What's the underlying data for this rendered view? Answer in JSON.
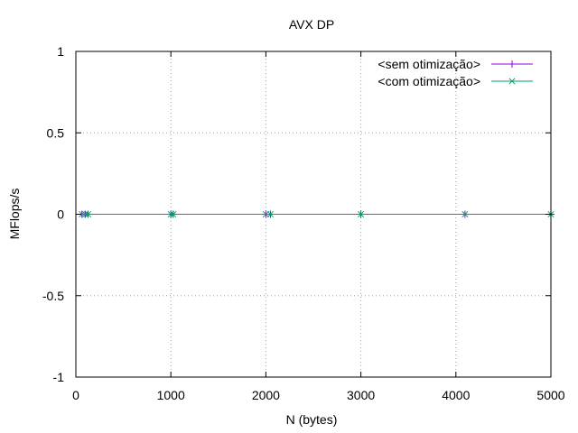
{
  "chart_data": {
    "type": "line",
    "title": "AVX DP",
    "xlabel": "N (bytes)",
    "ylabel": "MFlops/s",
    "xlim": [
      0,
      5000
    ],
    "ylim": [
      -1,
      1
    ],
    "xticks": [
      0,
      1000,
      2000,
      3000,
      4000,
      5000
    ],
    "xtick_labels": [
      "0",
      "1000",
      "2000",
      "3000",
      "4000",
      "5000"
    ],
    "yticks": [
      1,
      0.5,
      0,
      -0.5,
      -1
    ],
    "ytick_labels": [
      "1",
      "0.5",
      "0",
      "-0.5",
      "-1"
    ],
    "grid": true,
    "legend_position": "top-right",
    "series": [
      {
        "name": "<sem otimização>",
        "color": "#9400d3",
        "marker": "plus",
        "x": [
          64,
          100,
          128,
          1000,
          1024,
          2000,
          2048,
          3000,
          4096,
          5000
        ],
        "y": [
          0,
          0,
          0,
          0,
          0,
          0,
          0,
          0,
          0,
          0
        ]
      },
      {
        "name": "<com otimização>",
        "color": "#009e73",
        "marker": "cross",
        "x": [
          64,
          100,
          128,
          1000,
          1024,
          2000,
          2048,
          3000,
          4096,
          5000
        ],
        "y": [
          0,
          0,
          0,
          0,
          0,
          0,
          0,
          0,
          0,
          0
        ]
      }
    ]
  }
}
